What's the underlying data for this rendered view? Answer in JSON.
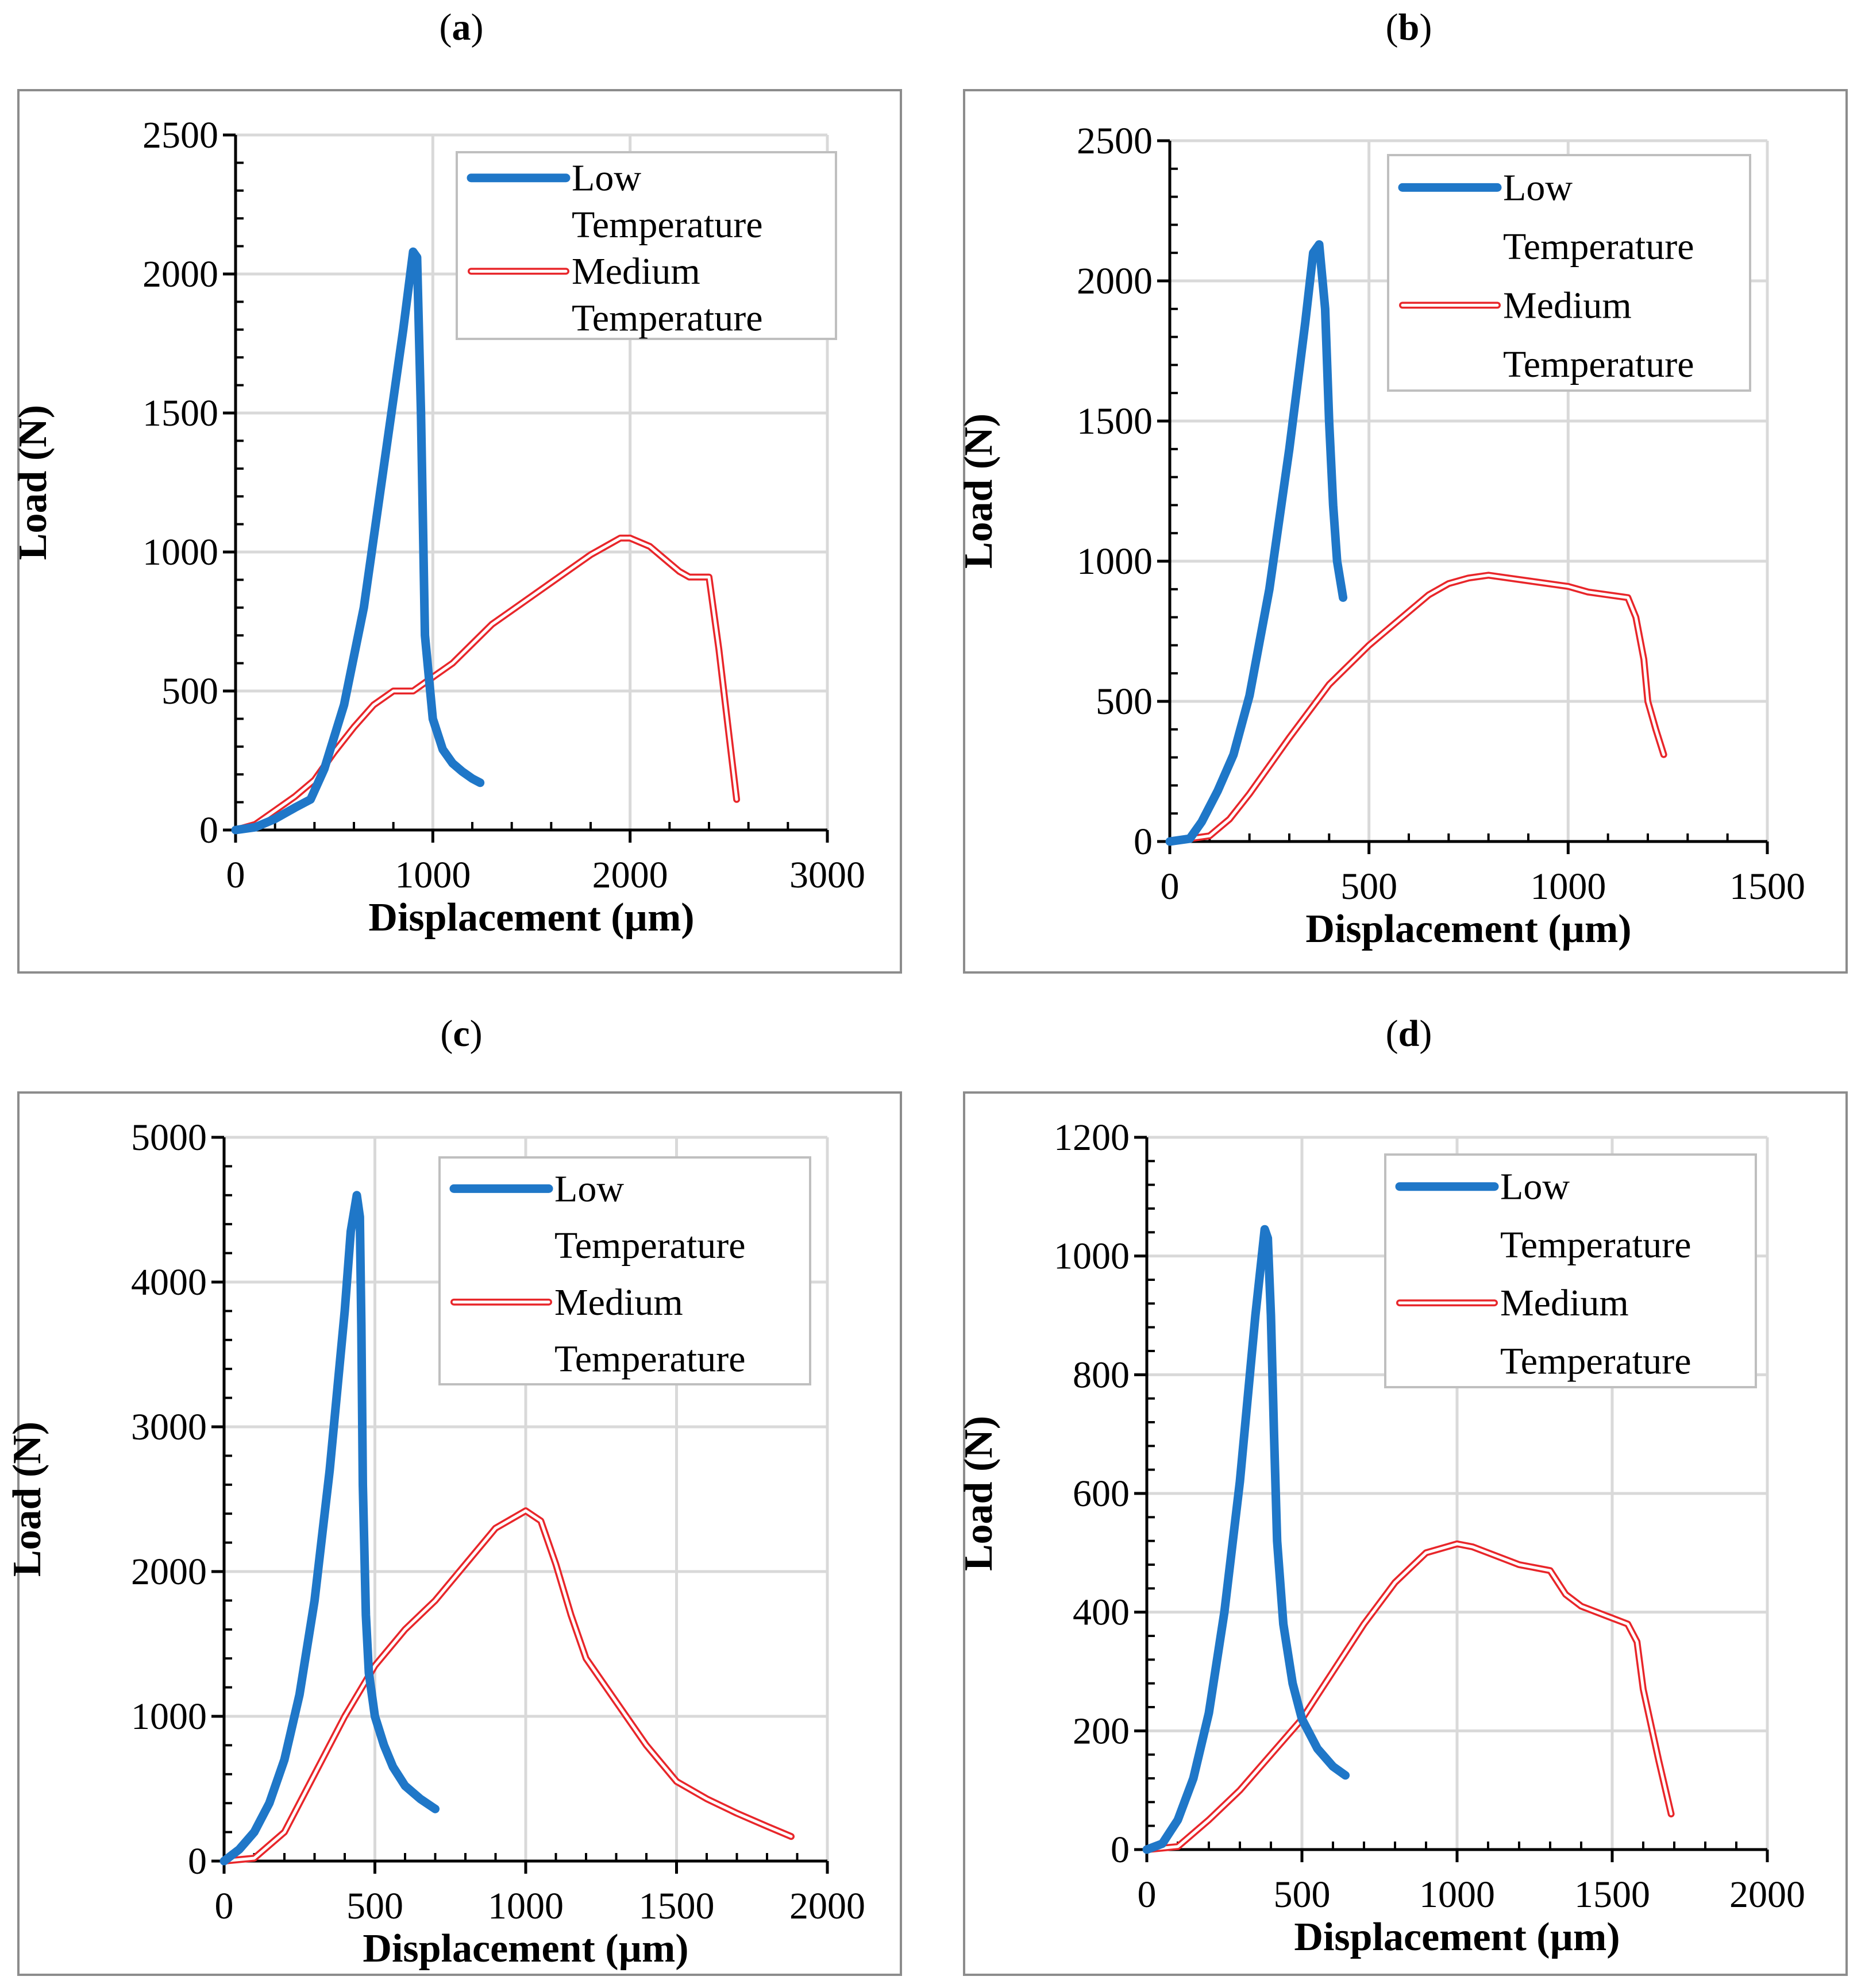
{
  "colors": {
    "low": "#1f77c8",
    "medium": "#e8262a",
    "grid": "#d9d9d9",
    "frame": "#8c8c8c",
    "axis": "#000000"
  },
  "chart_data": [
    {
      "panel": "a",
      "type": "line",
      "xlabel": "Displacement (µm)",
      "ylabel": "Load (N)",
      "xlim": [
        0,
        3000
      ],
      "ylim": [
        0,
        2500
      ],
      "xticks": [
        0,
        1000,
        2000,
        3000
      ],
      "yticks": [
        0,
        500,
        1000,
        1500,
        2000,
        2500
      ],
      "legend": [
        "Low",
        "Temperature",
        "Medium",
        "Temperature"
      ],
      "series": [
        {
          "name": "Low Temperature",
          "x": [
            0,
            100,
            200,
            300,
            380,
            450,
            550,
            650,
            750,
            850,
            900,
            920,
            940,
            960,
            1000,
            1050,
            1100,
            1150,
            1200,
            1240
          ],
          "y": [
            0,
            10,
            40,
            80,
            110,
            220,
            450,
            800,
            1300,
            1800,
            2080,
            2060,
            1500,
            700,
            400,
            290,
            240,
            210,
            185,
            170
          ]
        },
        {
          "name": "Medium Temperature",
          "x": [
            0,
            100,
            200,
            300,
            400,
            500,
            600,
            700,
            800,
            900,
            1000,
            1100,
            1200,
            1300,
            1400,
            1500,
            1600,
            1700,
            1800,
            1900,
            1950,
            2000,
            2100,
            2200,
            2250,
            2300,
            2350,
            2400,
            2450,
            2500,
            2540
          ],
          "y": [
            0,
            20,
            70,
            120,
            180,
            280,
            370,
            450,
            500,
            500,
            550,
            600,
            670,
            740,
            790,
            840,
            890,
            940,
            990,
            1030,
            1050,
            1050,
            1020,
            960,
            930,
            910,
            910,
            910,
            650,
            350,
            110
          ]
        }
      ]
    },
    {
      "panel": "b",
      "type": "line",
      "xlabel": "Displacement (µm)",
      "ylabel": "Load (N)",
      "xlim": [
        0,
        1500
      ],
      "ylim": [
        0,
        2500
      ],
      "xticks": [
        0,
        500,
        1000,
        1500
      ],
      "yticks": [
        0,
        500,
        1000,
        1500,
        2000,
        2500
      ],
      "legend": [
        "Low",
        "Temperature",
        "Medium",
        "Temperature"
      ],
      "series": [
        {
          "name": "Low Temperature",
          "x": [
            0,
            50,
            80,
            120,
            160,
            200,
            250,
            300,
            340,
            360,
            375,
            390,
            400,
            410,
            420,
            435
          ],
          "y": [
            0,
            10,
            70,
            180,
            310,
            520,
            900,
            1400,
            1850,
            2100,
            2130,
            1900,
            1500,
            1200,
            1000,
            870
          ]
        },
        {
          "name": "Medium Temperature",
          "x": [
            0,
            100,
            150,
            200,
            300,
            400,
            500,
            600,
            650,
            700,
            750,
            800,
            850,
            900,
            1000,
            1050,
            1100,
            1150,
            1170,
            1190,
            1200,
            1220,
            1240
          ],
          "y": [
            0,
            20,
            80,
            170,
            370,
            560,
            700,
            820,
            880,
            920,
            940,
            950,
            940,
            930,
            910,
            890,
            880,
            870,
            800,
            650,
            500,
            400,
            310
          ]
        }
      ]
    },
    {
      "panel": "c",
      "type": "line",
      "xlabel": "Displacement (µm)",
      "ylabel": "Load (N)",
      "xlim": [
        0,
        2000
      ],
      "ylim": [
        0,
        5000
      ],
      "xticks": [
        0,
        500,
        1000,
        1500,
        2000
      ],
      "yticks": [
        0,
        1000,
        2000,
        3000,
        4000,
        5000
      ],
      "legend": [
        "Low",
        "Temperature",
        "Medium",
        "Temperature"
      ],
      "series": [
        {
          "name": "Low Temperature",
          "x": [
            0,
            50,
            100,
            150,
            200,
            250,
            300,
            350,
            400,
            420,
            440,
            450,
            455,
            460,
            470,
            480,
            500,
            530,
            560,
            600,
            650,
            700
          ],
          "y": [
            0,
            80,
            200,
            400,
            700,
            1150,
            1800,
            2700,
            3800,
            4350,
            4600,
            4450,
            3700,
            2600,
            1700,
            1300,
            1000,
            800,
            650,
            520,
            430,
            360
          ]
        },
        {
          "name": "Medium Temperature",
          "x": [
            0,
            100,
            200,
            300,
            400,
            500,
            600,
            700,
            800,
            900,
            1000,
            1050,
            1100,
            1150,
            1200,
            1300,
            1400,
            1500,
            1600,
            1700,
            1800,
            1880
          ],
          "y": [
            0,
            20,
            200,
            600,
            1000,
            1350,
            1600,
            1800,
            2050,
            2300,
            2420,
            2350,
            2050,
            1700,
            1400,
            1100,
            800,
            550,
            430,
            330,
            240,
            170
          ]
        }
      ]
    },
    {
      "panel": "d",
      "type": "line",
      "xlabel": "Displacement (µm)",
      "ylabel": "Load (N)",
      "xlim": [
        0,
        2000
      ],
      "ylim": [
        0,
        1200
      ],
      "xticks": [
        0,
        500,
        1000,
        1500,
        2000
      ],
      "yticks": [
        0,
        200,
        400,
        600,
        800,
        1000,
        1200
      ],
      "legend": [
        "Low",
        "Temperature",
        "Medium",
        "Temperature"
      ],
      "series": [
        {
          "name": "Low Temperature",
          "x": [
            0,
            50,
            100,
            150,
            200,
            250,
            300,
            350,
            380,
            390,
            400,
            410,
            420,
            440,
            470,
            500,
            550,
            600,
            640
          ],
          "y": [
            0,
            10,
            50,
            120,
            230,
            400,
            620,
            900,
            1045,
            1030,
            900,
            700,
            520,
            380,
            280,
            220,
            170,
            140,
            125
          ]
        },
        {
          "name": "Medium Temperature",
          "x": [
            0,
            100,
            200,
            300,
            400,
            500,
            600,
            700,
            800,
            900,
            1000,
            1050,
            1100,
            1200,
            1300,
            1350,
            1400,
            1500,
            1550,
            1580,
            1600,
            1650,
            1690
          ],
          "y": [
            0,
            5,
            50,
            100,
            160,
            220,
            300,
            380,
            450,
            500,
            515,
            510,
            500,
            480,
            470,
            430,
            410,
            390,
            380,
            350,
            270,
            150,
            60
          ]
        }
      ]
    }
  ],
  "panels": [
    {
      "label": "a"
    },
    {
      "label": "b"
    },
    {
      "label": "c"
    },
    {
      "label": "d"
    }
  ]
}
